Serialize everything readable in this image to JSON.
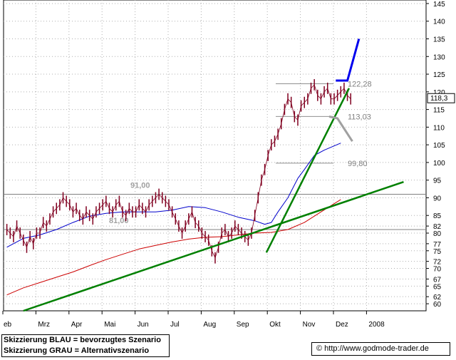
{
  "chart_data": {
    "type": "line",
    "x_tick_labels": [
      "eb",
      "Mrz",
      "Apr",
      "Mai",
      "Jun",
      "Jul",
      "Aug",
      "Sep",
      "Okt",
      "Nov",
      "Dez",
      "2008"
    ],
    "y_tick_labels": [
      "60",
      "62",
      "65",
      "67",
      "70",
      "72",
      "75",
      "77",
      "80",
      "82",
      "85",
      "90",
      "95",
      "100",
      "105",
      "110",
      "115",
      "120",
      "125",
      "130",
      "135",
      "140",
      "145"
    ],
    "ylim": [
      58,
      146
    ],
    "last_price": "118,3",
    "horizontal_levels": [
      {
        "value": 91.0,
        "label": "91,00"
      },
      {
        "value": 81.0,
        "label": "81,00"
      },
      {
        "value": 122.28,
        "label": "122,28"
      },
      {
        "value": 113.03,
        "label": "113,03"
      },
      {
        "value": 99.8,
        "label": "99,80"
      }
    ],
    "price_series": {
      "color": "#800020",
      "x_months": [
        1.0,
        1.1,
        1.2,
        1.3,
        1.4,
        1.5,
        1.6,
        1.7,
        1.8,
        1.9,
        2.0,
        2.1,
        2.2,
        2.3,
        2.4,
        2.5,
        2.6,
        2.7,
        2.8,
        2.9,
        3.0,
        3.1,
        3.2,
        3.3,
        3.4,
        3.5,
        3.6,
        3.7,
        3.8,
        3.9,
        4.0,
        4.1,
        4.2,
        4.3,
        4.4,
        4.5,
        4.6,
        4.7,
        4.8,
        4.9,
        5.0,
        5.1,
        5.2,
        5.3,
        5.4,
        5.5,
        5.6,
        5.7,
        5.8,
        5.9,
        6.0,
        6.1,
        6.2,
        6.3,
        6.4,
        6.5,
        6.6,
        6.7,
        6.8,
        6.9,
        7.0,
        7.1,
        7.2,
        7.3,
        7.4,
        7.5,
        7.6,
        7.7,
        7.8,
        7.9,
        8.0,
        8.1,
        8.2,
        8.3,
        8.4,
        8.5,
        8.6,
        8.7,
        8.8,
        8.9,
        9.0,
        9.1,
        9.2,
        9.3,
        9.4,
        9.5,
        9.6,
        9.7,
        9.8,
        9.9,
        10.0,
        10.1,
        10.2,
        10.3,
        10.4,
        10.5,
        10.6,
        10.7,
        10.8,
        10.9,
        11.0,
        11.1,
        11.2,
        11.3,
        11.4
      ],
      "values": [
        81,
        80,
        79,
        82,
        80,
        78,
        76,
        79,
        77,
        80,
        80,
        83,
        82,
        84,
        86,
        87,
        88,
        90,
        89,
        88,
        86,
        87,
        85,
        84,
        86,
        85,
        84,
        86,
        87,
        88,
        89,
        87,
        86,
        88,
        89,
        86,
        85,
        87,
        86,
        86,
        88,
        87,
        86,
        88,
        89,
        90,
        91,
        90,
        89,
        88,
        86,
        84,
        82,
        80,
        82,
        84,
        86,
        83,
        82,
        80,
        79,
        78,
        75,
        73,
        76,
        80,
        81,
        79,
        80,
        82,
        81,
        80,
        79,
        78,
        80,
        85,
        90,
        95,
        98,
        102,
        105,
        106,
        108,
        111,
        115,
        118,
        117,
        113,
        112,
        116,
        117,
        118,
        121,
        122,
        119,
        118,
        120,
        121,
        118,
        118,
        119,
        120,
        121,
        119,
        118
      ]
    },
    "sma_blue": {
      "color": "#0000cc",
      "x_months": [
        1.0,
        1.5,
        2.0,
        2.5,
        3.0,
        3.5,
        4.0,
        4.5,
        5.0,
        5.5,
        6.0,
        6.5,
        7.0,
        7.5,
        8.0,
        8.5,
        8.8,
        9.0,
        9.2,
        9.5,
        9.8,
        10.0,
        10.3,
        10.6,
        11.1
      ],
      "values": [
        76,
        78.5,
        79.5,
        81,
        83,
        84.8,
        85.6,
        86,
        86,
        86,
        86.5,
        87.5,
        87.2,
        86,
        84.5,
        83.5,
        82.5,
        83,
        86,
        90,
        95.5,
        98,
        102,
        103.5,
        105.5
      ]
    },
    "sma_red": {
      "color": "#cc0000",
      "x_months": [
        1.0,
        1.5,
        2.0,
        2.5,
        3.0,
        3.5,
        4.0,
        4.5,
        5.0,
        5.5,
        6.0,
        6.5,
        7.0,
        7.5,
        8.0,
        8.5,
        9.0,
        9.5,
        10.0,
        10.5,
        11.1
      ],
      "values": [
        62.5,
        64.5,
        66,
        67.5,
        69,
        70.8,
        72.5,
        74,
        75.5,
        76.5,
        77.5,
        78.3,
        78.8,
        79,
        79.5,
        80,
        80.2,
        81,
        83,
        86,
        89.5
      ]
    },
    "trendlines": [
      {
        "name": "",
        "color": "#008000",
        "points": [
          [
            1.5,
            58
          ],
          [
            13.0,
            94.5
          ]
        ]
      },
      {
        "name": "",
        "color": "#008000",
        "points": [
          [
            8.85,
            74.5
          ],
          [
            11.35,
            121
          ]
        ]
      }
    ],
    "scenario_paths": [
      {
        "color": "#0000ee",
        "points": [
          [
            10.95,
            123.2
          ],
          [
            11.3,
            123.2
          ],
          [
            11.65,
            135
          ]
        ]
      },
      {
        "color": "#a0a0a0",
        "points": [
          [
            10.75,
            113
          ],
          [
            11.0,
            112.5
          ],
          [
            11.45,
            106
          ]
        ]
      }
    ]
  },
  "legend_lines": [
    "Skizzierung BLAU = bevorzugtes Szenario",
    "Skizzierung GRAU = Alternativszenario"
  ],
  "copyright": "© http://www.godmode-trader.de"
}
